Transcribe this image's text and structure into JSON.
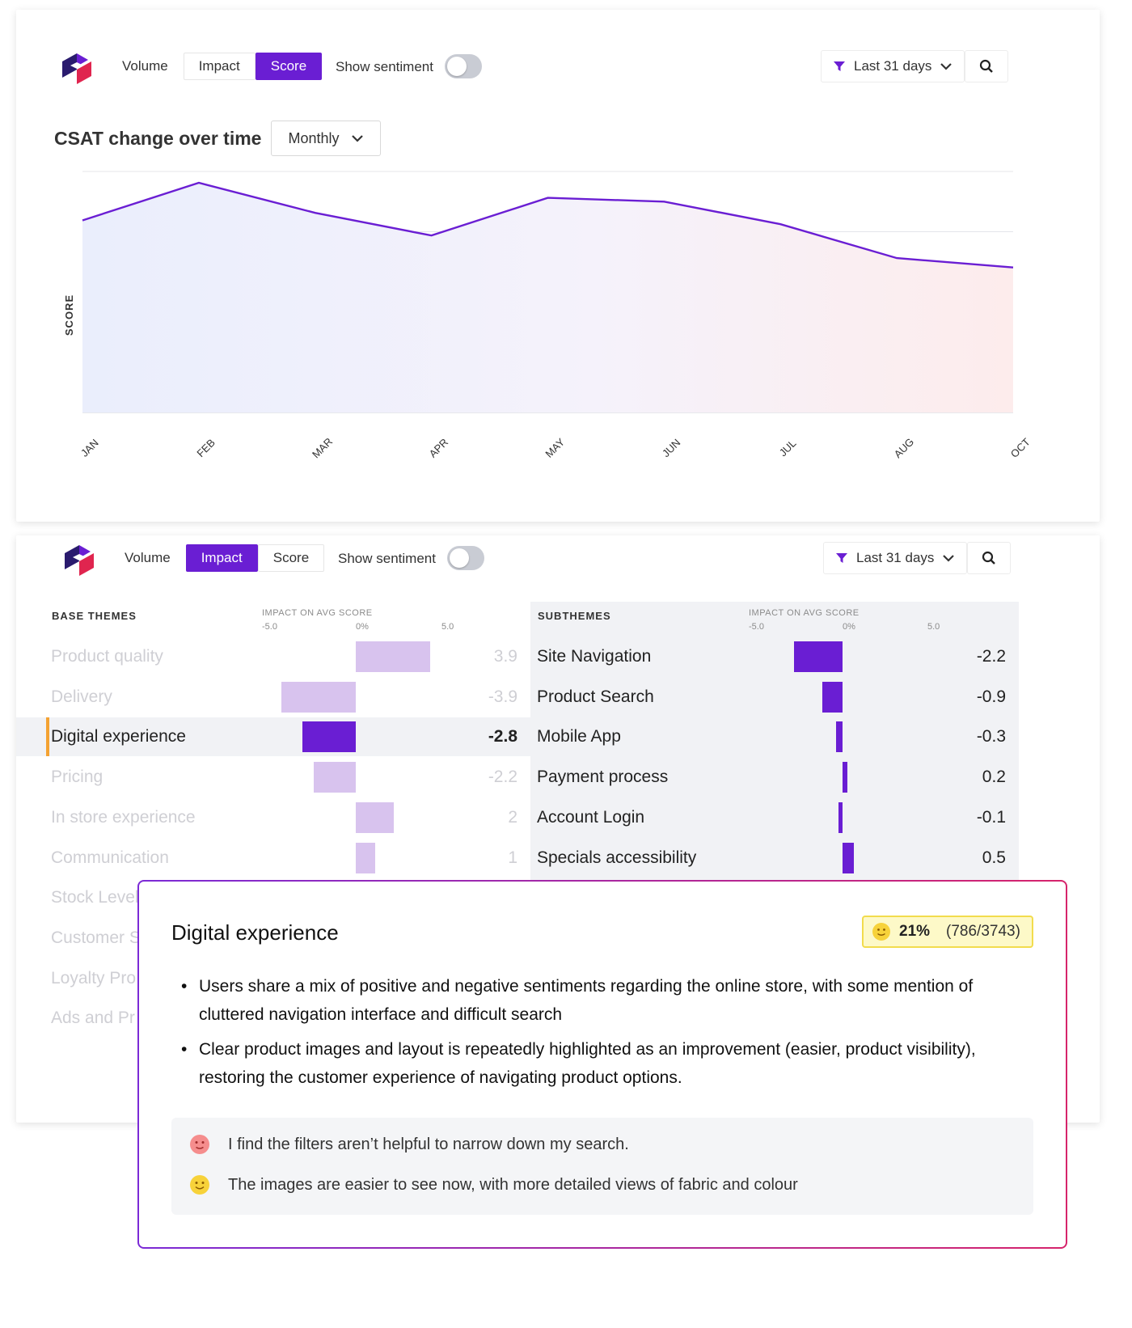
{
  "colors": {
    "accent": "#6a1ed3",
    "bar_light": "#d8c3ee",
    "selected_marker": "#f4a232",
    "line": "#6a1ed3"
  },
  "score_card": {
    "tabs": [
      {
        "label": "Volume",
        "active": false
      },
      {
        "label": "Impact",
        "active": false
      },
      {
        "label": "Score",
        "active": true
      }
    ],
    "sentiment_label": "Show sentiment",
    "sentiment_on": false,
    "filter_label": "Last 31 days",
    "icons": {
      "logo": "brand-logo",
      "filter": "funnel-icon",
      "dropdown": "chevron-down-icon",
      "search": "search-icon"
    },
    "title": "CSAT change over time",
    "period": "Monthly"
  },
  "chart_data": {
    "type": "area",
    "title": "CSAT change over time",
    "ylabel": "SCORE",
    "xlabel": "",
    "categories": [
      "JAN",
      "FEB",
      "MAR",
      "APR",
      "MAY",
      "JUN",
      "JUL",
      "AUG",
      "OCT"
    ],
    "values": [
      2.7,
      3.7,
      2.9,
      2.3,
      3.3,
      3.2,
      2.6,
      1.7,
      1.45
    ],
    "ylim": [
      -2.4,
      4.0
    ],
    "grid": true,
    "legend": "none"
  },
  "impact_card": {
    "tabs": [
      {
        "label": "Volume",
        "active": false
      },
      {
        "label": "Impact",
        "active": true
      },
      {
        "label": "Score",
        "active": false
      }
    ],
    "sentiment_label": "Show sentiment",
    "filter_label": "Last 31 days",
    "base_header": "BASE THEMES",
    "sub_header": "SUBTHEMES",
    "axis_label": "IMPACT ON AVG SCORE",
    "axis_ticks": [
      "-5.0",
      "0%",
      "5.0"
    ],
    "base_themes": [
      {
        "name": "Product quality",
        "value": 3.9,
        "label": "3.9"
      },
      {
        "name": "Delivery",
        "value": -3.9,
        "label": "-3.9"
      },
      {
        "name": "Digital experience",
        "value": -2.8,
        "label": "-2.8",
        "selected": true
      },
      {
        "name": "Pricing",
        "value": -2.2,
        "label": "-2.2"
      },
      {
        "name": "In store experience",
        "value": 2,
        "label": "2"
      },
      {
        "name": "Communication",
        "value": 1,
        "label": "1"
      },
      {
        "name": "Stock Level",
        "value": 0,
        "label": ""
      },
      {
        "name": "Customer S",
        "value": 0,
        "label": ""
      },
      {
        "name": "Loyalty Pro",
        "value": 0,
        "label": ""
      },
      {
        "name": "Ads and Pr",
        "value": 0,
        "label": ""
      }
    ],
    "subthemes": [
      {
        "name": "Site Navigation",
        "value": -2.2,
        "label": "-2.2"
      },
      {
        "name": "Product Search",
        "value": -0.9,
        "label": "-0.9"
      },
      {
        "name": "Mobile App",
        "value": -0.3,
        "label": "-0.3"
      },
      {
        "name": "Payment process",
        "value": 0.2,
        "label": "0.2"
      },
      {
        "name": "Account Login",
        "value": -0.1,
        "label": "-0.1"
      },
      {
        "name": "Specials accessibility",
        "value": 0.5,
        "label": "0.5"
      }
    ]
  },
  "popup": {
    "title": "Digital experience",
    "badge_percent": "21%",
    "badge_count": "(786/3743)",
    "bullets": [
      "Users share a mix of positive and negative sentiments regarding the online store, with some mention of cluttered navigation interface and difficult search",
      "Clear product images and layout is repeatedly highlighted as an improvement (easier, product visibility), restoring the customer experience of navigating product options."
    ],
    "quotes": [
      {
        "sentiment": "negative",
        "icon": "sad-face-icon",
        "text": "I find the filters aren’t helpful to narrow down my search."
      },
      {
        "sentiment": "positive",
        "icon": "happy-face-icon",
        "text": "The images are easier to see now, with more detailed views of fabric and colour"
      }
    ]
  }
}
